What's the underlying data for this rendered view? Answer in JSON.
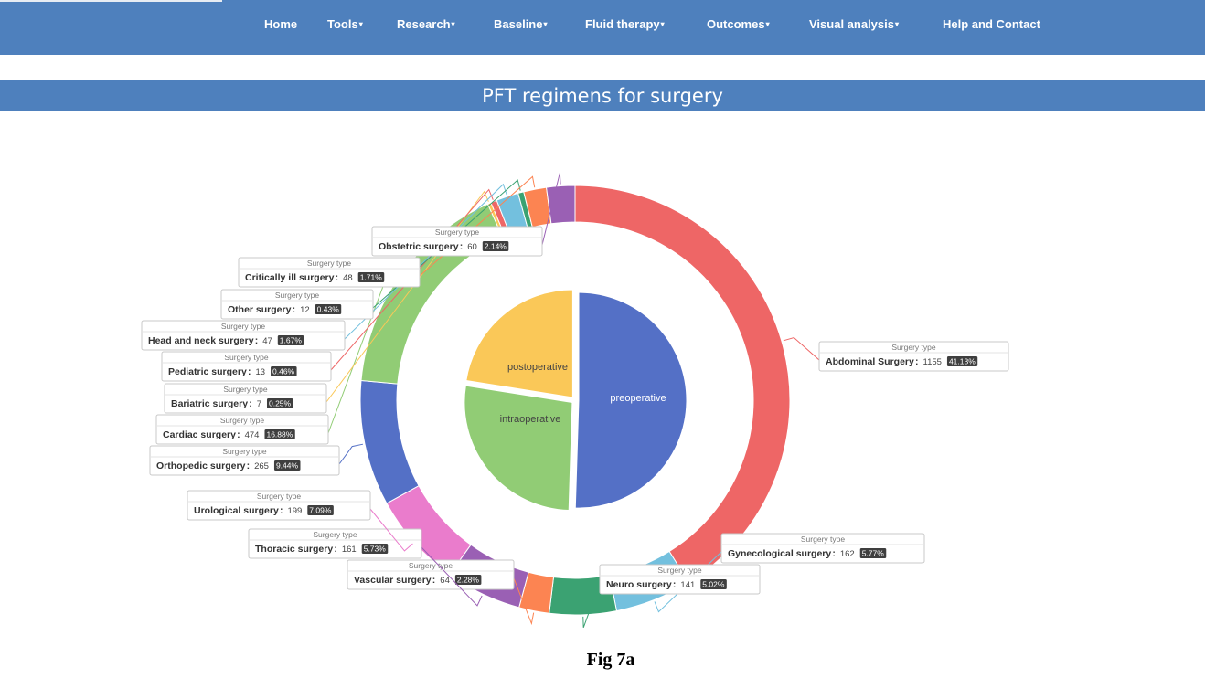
{
  "nav": {
    "items": [
      {
        "label": "Home",
        "dropdown": false
      },
      {
        "label": "Tools",
        "dropdown": true
      },
      {
        "label": "Research",
        "dropdown": true
      },
      {
        "label": "Baseline",
        "dropdown": true
      },
      {
        "label": "Fluid therapy",
        "dropdown": true
      },
      {
        "label": "Outcomes",
        "dropdown": true
      },
      {
        "label": "Visual analysis",
        "dropdown": true
      },
      {
        "label": "Help and Contact",
        "dropdown": false
      }
    ],
    "caret_glyph": "▾",
    "background": "#4e80bd"
  },
  "page_title": "PFT regimens for surgery",
  "figure_caption": "Fig 7a",
  "chart_data": {
    "type": "pie",
    "subtype": "nested-donut",
    "tooltip_header": "Surgery type",
    "inner_ring": {
      "slices": [
        {
          "name": "preoperative",
          "share": 50.5,
          "color": "#5470c6"
        },
        {
          "name": "intraoperative",
          "share": 27.0,
          "color": "#91cc75"
        },
        {
          "name": "postoperative",
          "share": 22.5,
          "color": "#fac858"
        }
      ]
    },
    "outer_ring": {
      "slices": [
        {
          "name": "Abdominal Surgery",
          "value": 1155,
          "percent": "41.13%",
          "color": "#ee6666"
        },
        {
          "name": "Gynecological surgery",
          "value": 162,
          "percent": "5.77%",
          "color": "#73c0de"
        },
        {
          "name": "Neuro surgery",
          "value": 141,
          "percent": "5.02%",
          "color": "#3ba272"
        },
        {
          "name": "Vascular surgery",
          "value": 64,
          "percent": "2.28%",
          "color": "#fc8452"
        },
        {
          "name": "Thoracic surgery",
          "value": 161,
          "percent": "5.73%",
          "color": "#9a60b4"
        },
        {
          "name": "Urological surgery",
          "value": 199,
          "percent": "7.09%",
          "color": "#ea7ccc"
        },
        {
          "name": "Orthopedic surgery",
          "value": 265,
          "percent": "9.44%",
          "color": "#5470c6"
        },
        {
          "name": "Cardiac surgery",
          "value": 474,
          "percent": "16.88%",
          "color": "#91cc75"
        },
        {
          "name": "Bariatric surgery",
          "value": 7,
          "percent": "0.25%",
          "color": "#fac858"
        },
        {
          "name": "Pediatric surgery",
          "value": 13,
          "percent": "0.46%",
          "color": "#ee6666"
        },
        {
          "name": "Head and neck surgery",
          "value": 47,
          "percent": "1.67%",
          "color": "#73c0de"
        },
        {
          "name": "Other surgery",
          "value": 12,
          "percent": "0.43%",
          "color": "#3ba272"
        },
        {
          "name": "Critically ill surgery",
          "value": 48,
          "percent": "1.71%",
          "color": "#fc8452"
        },
        {
          "name": "Obstetric surgery",
          "value": 60,
          "percent": "2.14%",
          "color": "#9a60b4"
        }
      ]
    }
  }
}
